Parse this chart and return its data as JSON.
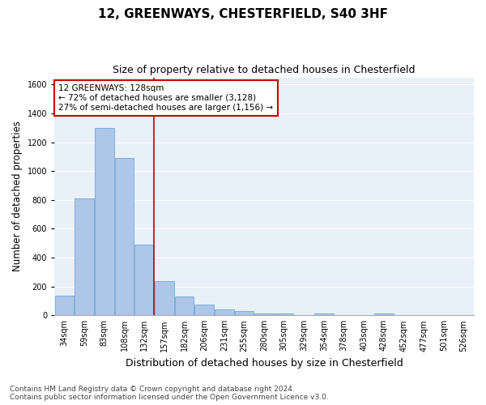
{
  "title": "12, GREENWAYS, CHESTERFIELD, S40 3HF",
  "subtitle": "Size of property relative to detached houses in Chesterfield",
  "xlabel": "Distribution of detached houses by size in Chesterfield",
  "ylabel": "Number of detached properties",
  "footnote1": "Contains HM Land Registry data © Crown copyright and database right 2024.",
  "footnote2": "Contains public sector information licensed under the Open Government Licence v3.0.",
  "annotation_line1": "12 GREENWAYS: 128sqm",
  "annotation_line2": "← 72% of detached houses are smaller (3,128)",
  "annotation_line3": "27% of semi-detached houses are larger (1,156) →",
  "bar_labels": [
    "34sqm",
    "59sqm",
    "83sqm",
    "108sqm",
    "132sqm",
    "157sqm",
    "182sqm",
    "206sqm",
    "231sqm",
    "255sqm",
    "280sqm",
    "305sqm",
    "329sqm",
    "354sqm",
    "378sqm",
    "403sqm",
    "428sqm",
    "452sqm",
    "477sqm",
    "501sqm",
    "526sqm"
  ],
  "bar_values": [
    137,
    810,
    1300,
    1090,
    490,
    235,
    133,
    72,
    40,
    27,
    14,
    13,
    2,
    13,
    2,
    1,
    14,
    0,
    0,
    0,
    0
  ],
  "bar_color": "#aec6e8",
  "bar_edge_color": "#5a9fd4",
  "red_line_x": 4.5,
  "ylim": [
    0,
    1650
  ],
  "yticks": [
    0,
    200,
    400,
    600,
    800,
    1000,
    1200,
    1400,
    1600
  ],
  "bg_color": "#e8f0f8",
  "grid_color": "#ffffff",
  "annotation_box_color": "#ffffff",
  "annotation_box_edge": "#cc0000",
  "red_line_color": "#cc0000",
  "title_fontsize": 11,
  "subtitle_fontsize": 9,
  "xlabel_fontsize": 9,
  "ylabel_fontsize": 8.5,
  "annotation_fontsize": 7.5,
  "footnote_fontsize": 6.5,
  "tick_fontsize": 7
}
